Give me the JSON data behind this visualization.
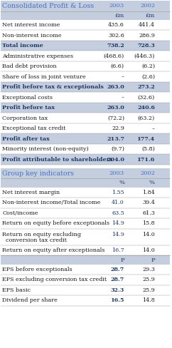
{
  "title1": "Consolidated Profit & Loss",
  "title2": "Group key indicators",
  "subheaders_pm": [
    "£m",
    "£m"
  ],
  "subheaders_pct": [
    "%",
    "%"
  ],
  "subheaders_p": [
    "P",
    "P"
  ],
  "pl_rows": [
    {
      "label": "Net interest income",
      "v2003": "435.6",
      "v2002": "441.4",
      "bold": false,
      "highlight": false
    },
    {
      "label": "Non-interest income",
      "v2003": "302.6",
      "v2002": "286.9",
      "bold": false,
      "highlight": false
    },
    {
      "label": "Total income",
      "v2003": "738.2",
      "v2002": "728.3",
      "bold": true,
      "highlight": true
    },
    {
      "label": "Administrative expenses",
      "v2003": "(468.6)",
      "v2002": "(446.3)",
      "bold": false,
      "highlight": false
    },
    {
      "label": "Bad debt provision",
      "v2003": "(6.6)",
      "v2002": "(6.2)",
      "bold": false,
      "highlight": false
    },
    {
      "label": "Share of loss in joint venture",
      "v2003": "–",
      "v2002": "(2.6)",
      "bold": false,
      "highlight": false
    },
    {
      "label": "Profit before tax & exceptionals",
      "v2003": "263.0",
      "v2002": "273.2",
      "bold": true,
      "highlight": true
    },
    {
      "label": "Exceptional costs",
      "v2003": "–",
      "v2002": "(32.6)",
      "bold": false,
      "highlight": false
    },
    {
      "label": "Profit before tax",
      "v2003": "263.0",
      "v2002": "240.6",
      "bold": true,
      "highlight": true
    },
    {
      "label": "Corporation tax",
      "v2003": "(72.2)",
      "v2002": "(63.2)",
      "bold": false,
      "highlight": false
    },
    {
      "label": "Exceptional tax credit",
      "v2003": "22.9",
      "v2002": "–",
      "bold": false,
      "highlight": false
    },
    {
      "label": "Profit after tax",
      "v2003": "213.7",
      "v2002": "177.4",
      "bold": true,
      "highlight": true
    },
    {
      "label": "Minority interest (non-equity)",
      "v2003": "(9.7)",
      "v2002": "(5.8)",
      "bold": false,
      "highlight": false
    },
    {
      "label": "Profit attributable to shareholders",
      "v2003": "204.0",
      "v2002": "171.6",
      "bold": true,
      "highlight": true
    }
  ],
  "ki_rows": [
    {
      "label": "Net interest margin",
      "v2003": "1.55",
      "v2002": "1.84",
      "multiline": false
    },
    {
      "label": "Non-interest income/Total income",
      "v2003": "41.0",
      "v2002": "39.4",
      "multiline": false
    },
    {
      "label": "Cost/income",
      "v2003": "63.5",
      "v2002": "61.3",
      "multiline": false
    },
    {
      "label": "Return on equity before exceptionals",
      "v2003": "14.9",
      "v2002": "15.8",
      "multiline": false
    },
    {
      "label": "Return on equity excluding",
      "v2003": "14.9",
      "v2002": "14.0",
      "multiline": true,
      "label2": "  conversion tax credit"
    },
    {
      "label": "Return on equity after exceptionals",
      "v2003": "16.7",
      "v2002": "14.0",
      "multiline": false
    }
  ],
  "eps_rows": [
    {
      "label": "EPS before exceptionals",
      "v2003": "28.7",
      "v2002": "29.3"
    },
    {
      "label": "EPS excluding conversion tax credit",
      "v2003": "28.7",
      "v2002": "25.9"
    },
    {
      "label": "EPS basic",
      "v2003": "32.3",
      "v2002": "25.9"
    },
    {
      "label": "Dividend per share",
      "v2003": "16.5",
      "v2002": "14.8"
    }
  ],
  "title_color": "#4472C4",
  "bold_blue": "#1F3864",
  "normal_color": "#1a1a1a",
  "highlight_bg": "#C5CEDE",
  "header_bg": "#C5CEDE",
  "white": "#FFFFFF",
  "line_color": "#999999"
}
